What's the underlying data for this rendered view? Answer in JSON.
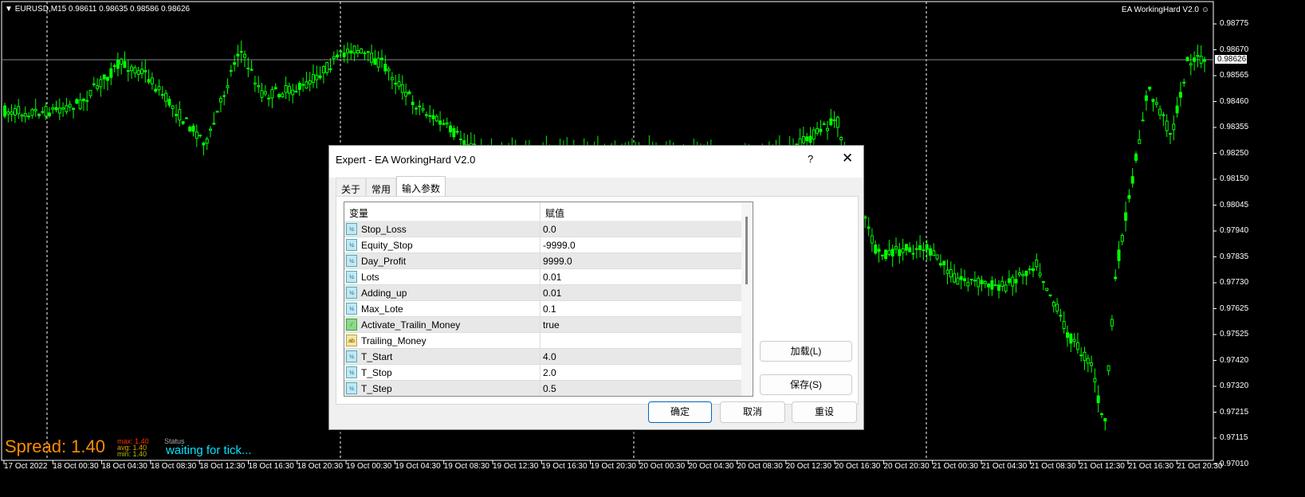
{
  "chart": {
    "symbol_line": "EURUSD,M15  0.98611 0.98635 0.98586 0.98626",
    "ea_label": "EA WorkingHard V2.0",
    "ea_icon": "smiley-icon",
    "current_price": "0.98626",
    "price_ticks": [
      "0.98775",
      "0.98670",
      "0.98565",
      "0.98460",
      "0.98355",
      "0.98250",
      "0.98150",
      "0.98045",
      "0.97940",
      "0.97835",
      "0.97730",
      "0.97625",
      "0.97525",
      "0.97420",
      "0.97320",
      "0.97215",
      "0.97115",
      "0.97010"
    ],
    "time_ticks": [
      "17 Oct 2022",
      "18 Oct 00:30",
      "18 Oct 04:30",
      "18 Oct 08:30",
      "18 Oct 12:30",
      "18 Oct 16:30",
      "18 Oct 20:30",
      "19 Oct 00:30",
      "19 Oct 04:30",
      "19 Oct 08:30",
      "19 Oct 12:30",
      "19 Oct 16:30",
      "19 Oct 20:30",
      "20 Oct 00:30",
      "20 Oct 04:30",
      "20 Oct 08:30",
      "20 Oct 12:30",
      "20 Oct 16:30",
      "20 Oct 20:30",
      "21 Oct 00:30",
      "21 Oct 04:30",
      "21 Oct 08:30",
      "21 Oct 12:30",
      "21 Oct 16:30",
      "21 Oct 20:30"
    ],
    "candle_color": "#00ff00"
  },
  "overlay": {
    "spread": "Spread: 1.40",
    "max_label": "max:",
    "max": "1.40",
    "avg_label": "avg:",
    "avg": "1.40",
    "min_label": "min:",
    "min": "1.40",
    "status_label": "Status",
    "status": "waiting for tick..."
  },
  "dialog": {
    "title": "Expert - EA WorkingHard V2.0",
    "help": "?",
    "close": "✕",
    "tabs": [
      "关于",
      "常用",
      "输入参数"
    ],
    "col_var": "变量",
    "col_val": "赋值",
    "rows": [
      {
        "name": "Stop_Loss",
        "value": "0.0",
        "type": "double"
      },
      {
        "name": "Equity_Stop",
        "value": "-9999.0",
        "type": "double"
      },
      {
        "name": "Day_Profit",
        "value": "9999.0",
        "type": "double"
      },
      {
        "name": "Lots",
        "value": "0.01",
        "type": "double"
      },
      {
        "name": "Adding_up",
        "value": "0.01",
        "type": "double"
      },
      {
        "name": "Max_Lote",
        "value": "0.1",
        "type": "double"
      },
      {
        "name": "Activate_Trailin_Money",
        "value": "true",
        "type": "bool"
      },
      {
        "name": "Trailing_Money",
        "value": "",
        "type": "string"
      },
      {
        "name": "T_Start",
        "value": "4.0",
        "type": "double"
      },
      {
        "name": "T_Stop",
        "value": "2.0",
        "type": "double"
      },
      {
        "name": "T_Step",
        "value": "0.5",
        "type": "double"
      }
    ],
    "load": "加载(L)",
    "save": "保存(S)",
    "ok": "确定",
    "cancel": "取消",
    "reset": "重设"
  }
}
